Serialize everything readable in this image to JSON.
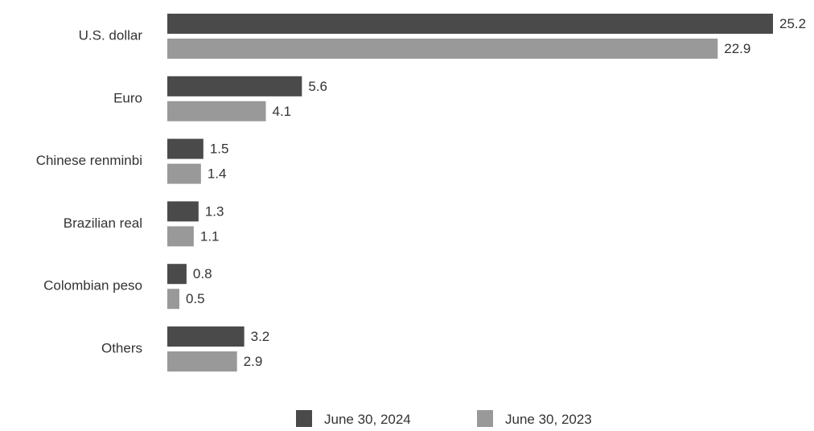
{
  "chart_data": {
    "type": "bar",
    "orientation": "horizontal",
    "categories": [
      "U.S. dollar",
      "Euro",
      "Chinese renminbi",
      "Brazilian real",
      "Colombian peso",
      "Others"
    ],
    "series": [
      {
        "name": "June 30, 2024",
        "values": [
          25.2,
          5.6,
          1.5,
          1.3,
          0.8,
          3.2
        ],
        "color": "#4a4a4a"
      },
      {
        "name": "June 30, 2023",
        "values": [
          22.9,
          4.1,
          1.4,
          1.1,
          0.5,
          2.9
        ],
        "color": "#999999"
      }
    ],
    "data_labels": true,
    "grid": false,
    "legend_position": "bottom-center",
    "xlim": [
      0,
      25.2
    ]
  }
}
